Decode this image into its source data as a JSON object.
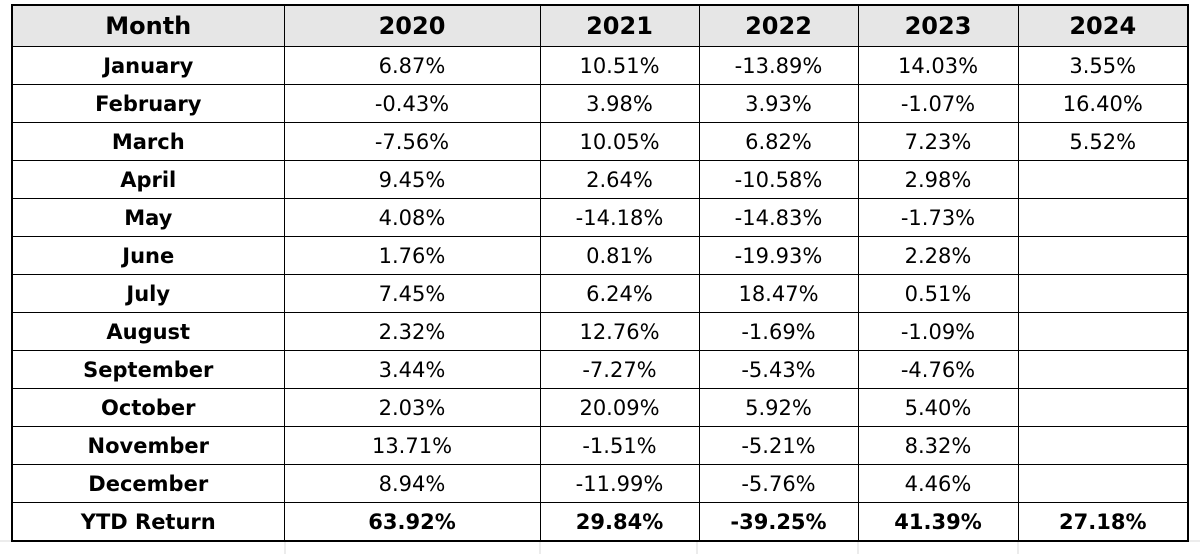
{
  "table": {
    "headers": [
      "Month",
      "2020",
      "2021",
      "2022",
      "2023",
      "2024"
    ],
    "rows": [
      [
        "January",
        "6.87%",
        "10.51%",
        "-13.89%",
        "14.03%",
        "3.55%"
      ],
      [
        "February",
        "-0.43%",
        "3.98%",
        "3.93%",
        "-1.07%",
        "16.40%"
      ],
      [
        "March",
        "-7.56%",
        "10.05%",
        "6.82%",
        "7.23%",
        "5.52%"
      ],
      [
        "April",
        "9.45%",
        "2.64%",
        "-10.58%",
        "2.98%",
        ""
      ],
      [
        "May",
        "4.08%",
        "-14.18%",
        "-14.83%",
        "-1.73%",
        ""
      ],
      [
        "June",
        "1.76%",
        "0.81%",
        "-19.93%",
        "2.28%",
        ""
      ],
      [
        "July",
        "7.45%",
        "6.24%",
        "18.47%",
        "0.51%",
        ""
      ],
      [
        "August",
        "2.32%",
        "12.76%",
        "-1.69%",
        "-1.09%",
        ""
      ],
      [
        "September",
        "3.44%",
        "-7.27%",
        "-5.43%",
        "-4.76%",
        ""
      ],
      [
        "October",
        "2.03%",
        "20.09%",
        "5.92%",
        "5.40%",
        ""
      ],
      [
        "November",
        "13.71%",
        "-1.51%",
        "-5.21%",
        "8.32%",
        ""
      ],
      [
        "December",
        "8.94%",
        "-11.99%",
        "-5.76%",
        "4.46%",
        ""
      ]
    ],
    "total_row": [
      "YTD Return",
      "63.92%",
      "29.84%",
      "-39.25%",
      "41.39%",
      "27.18%"
    ]
  },
  "colors": {
    "header_bg": "#e6e6e6",
    "border": "#000000",
    "sheet_gridline": "#d9d9d9"
  }
}
